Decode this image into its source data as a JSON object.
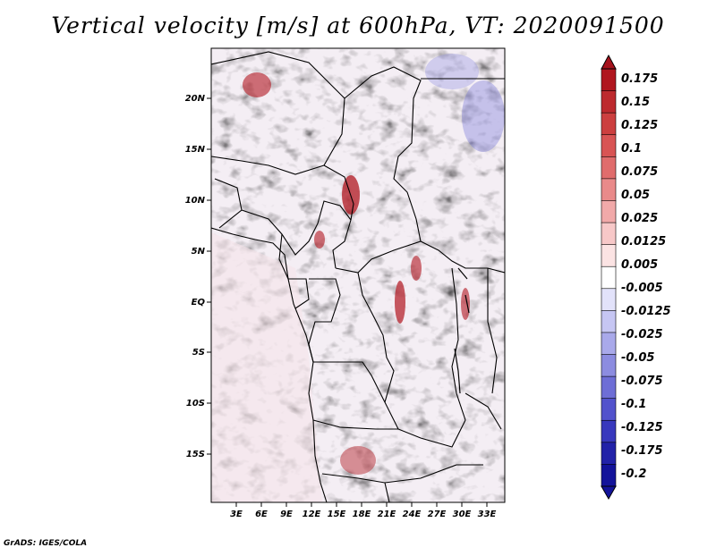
{
  "title": "Vertical velocity [m/s] at 600hPa, VT: 2020091500",
  "credit": "GrADS: IGES/COLA",
  "map": {
    "lon_range": [
      0,
      35.5
    ],
    "lat_range": [
      -20,
      25
    ],
    "lat_ticks": [
      "20N",
      "15N",
      "10N",
      "5N",
      "EQ",
      "5S",
      "10S",
      "15S"
    ],
    "lat_values": [
      20,
      15,
      10,
      5,
      0,
      -5,
      -10,
      -15
    ],
    "lon_ticks": [
      "3E",
      "6E",
      "9E",
      "12E",
      "15E",
      "18E",
      "21E",
      "24E",
      "27E",
      "30E",
      "33E"
    ],
    "lon_values": [
      3,
      6,
      9,
      12,
      15,
      18,
      21,
      24,
      27,
      30,
      33
    ]
  },
  "colorbar": {
    "labels": [
      "0.175",
      "0.15",
      "0.125",
      "0.1",
      "0.075",
      "0.05",
      "0.025",
      "0.0125",
      "0.005",
      "-0.005",
      "-0.0125",
      "-0.025",
      "-0.05",
      "-0.075",
      "-0.1",
      "-0.125",
      "-0.175",
      "-0.2"
    ],
    "colors": [
      "#b0161f",
      "#bd2a2e",
      "#cc3f3f",
      "#d85454",
      "#e06c6c",
      "#e98a8a",
      "#f1a9a9",
      "#f7c8c8",
      "#fbe3e3",
      "#ffffff",
      "#e2e2fa",
      "#c6c6f3",
      "#a9a9ea",
      "#8c8ce0",
      "#6e6ed6",
      "#5252cc",
      "#3838bd",
      "#2222a8",
      "#13139a"
    ]
  }
}
